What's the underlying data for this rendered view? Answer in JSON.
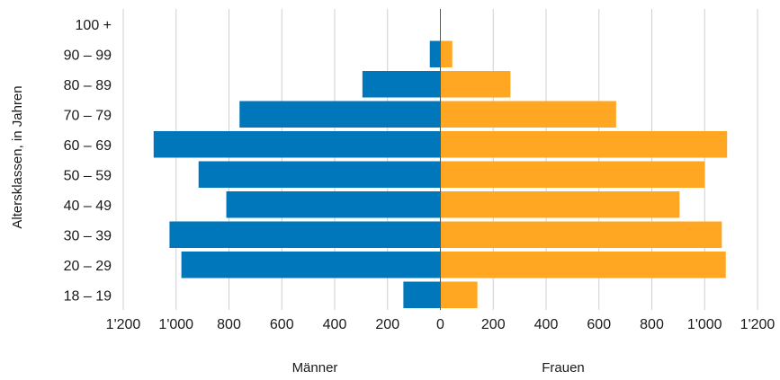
{
  "chart_data": {
    "type": "bar",
    "orientation": "horizontal-population-pyramid",
    "ylabel": "Altersklassen, in Jahren",
    "categories": [
      "100 +",
      "90 – 99",
      "80 – 89",
      "70 – 79",
      "60 – 69",
      "50 – 59",
      "40 – 49",
      "30 – 39",
      "20 – 29",
      "18 – 19"
    ],
    "series": [
      {
        "name": "Männer",
        "side": "left",
        "color": "#0077bb",
        "values": [
          0,
          40,
          295,
          760,
          1085,
          915,
          810,
          1025,
          980,
          140
        ]
      },
      {
        "name": "Frauen",
        "side": "right",
        "color": "#ffa623",
        "values": [
          0,
          45,
          265,
          665,
          1085,
          1000,
          905,
          1065,
          1080,
          140
        ]
      }
    ],
    "xlim": [
      -1200,
      1200
    ],
    "x_ticks": [
      -1200,
      -1000,
      -800,
      -600,
      -400,
      -200,
      0,
      200,
      400,
      600,
      800,
      1000,
      1200
    ],
    "x_tick_labels": [
      "1'200",
      "1'000",
      "800",
      "600",
      "400",
      "200",
      "0",
      "200",
      "400",
      "600",
      "800",
      "1'000",
      "1'200"
    ],
    "grid": "vertical",
    "legend": "bottom"
  }
}
